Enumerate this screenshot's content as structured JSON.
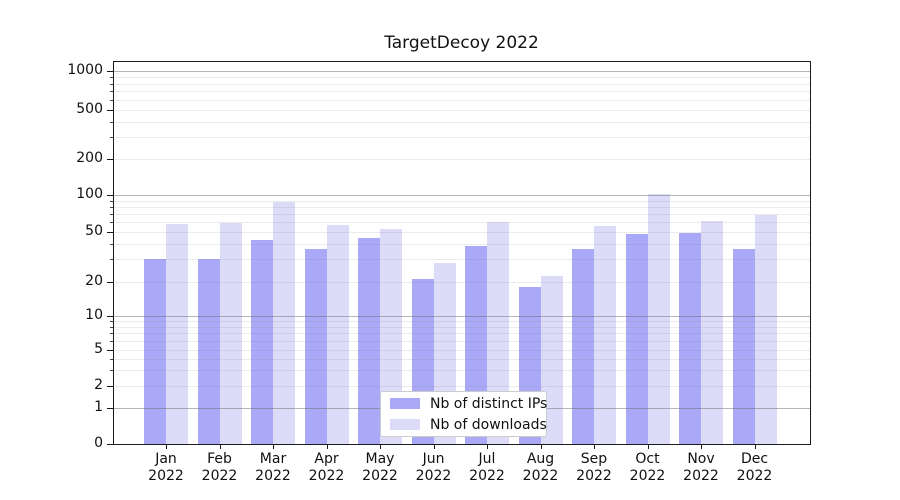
{
  "title": "TargetDecoy 2022",
  "chart_data": {
    "type": "bar",
    "title": "TargetDecoy 2022",
    "categories": [
      "Jan 2022",
      "Feb 2022",
      "Mar 2022",
      "Apr 2022",
      "May 2022",
      "Jun 2022",
      "Jul 2022",
      "Aug 2022",
      "Sep 2022",
      "Oct 2022",
      "Nov 2022",
      "Dec 2022"
    ],
    "series": [
      {
        "name": "Nb of distinct IPs",
        "color": "#a9a9f7",
        "values": [
          30,
          30,
          43,
          36,
          44,
          21,
          38,
          18,
          36,
          48,
          49,
          36
        ]
      },
      {
        "name": "Nb of downloads",
        "color": "#dcdcf9",
        "values": [
          58,
          59,
          88,
          57,
          52,
          28,
          60,
          22,
          55,
          101,
          61,
          68
        ]
      }
    ],
    "xlabel": "",
    "ylabel": "",
    "yscale": "symlog",
    "ytick_labels": [
      "0",
      "1",
      "2",
      "5",
      "10",
      "20",
      "50",
      "100",
      "200",
      "500",
      "1000"
    ],
    "ytick_values": [
      0,
      1,
      2,
      5,
      10,
      20,
      50,
      100,
      200,
      500,
      1000
    ],
    "ylim": [
      0,
      1400
    ],
    "grid": "both",
    "legend_position": "lower center"
  },
  "legend": {
    "items": [
      {
        "label": "Nb of distinct IPs",
        "color": "#a9a9f7"
      },
      {
        "label": "Nb of downloads",
        "color": "#dcdcf9"
      }
    ]
  }
}
